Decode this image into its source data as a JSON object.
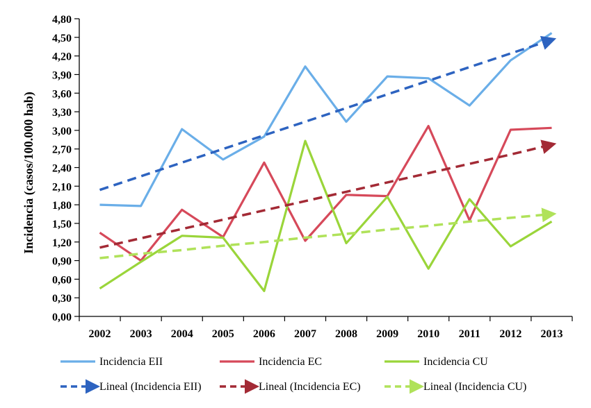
{
  "chart_data": {
    "type": "line",
    "title": "",
    "xlabel": "",
    "ylabel": "Incidencia (casos/100.000 hab)",
    "categories": [
      "2002",
      "2003",
      "2004",
      "2005",
      "2006",
      "2007",
      "2008",
      "2009",
      "2010",
      "2011",
      "2012",
      "2013"
    ],
    "ylim": [
      0,
      4.8
    ],
    "yticks": [
      "0,00",
      "0,30",
      "0,60",
      "0,90",
      "1,20",
      "1,50",
      "1,80",
      "2,10",
      "2,40",
      "2,70",
      "3,00",
      "3,30",
      "3,60",
      "3,90",
      "4,20",
      "4,50",
      "4,80"
    ],
    "grid": false,
    "legend_position": "bottom",
    "series": [
      {
        "name": "Incidencia EII",
        "color": "#6aaee8",
        "style": "solid",
        "values": [
          1.8,
          1.78,
          3.02,
          2.53,
          2.9,
          4.03,
          3.14,
          3.87,
          3.84,
          3.4,
          4.13,
          4.57
        ]
      },
      {
        "name": "Incidencia EC",
        "color": "#d6495a",
        "style": "solid",
        "values": [
          1.35,
          0.9,
          1.72,
          1.28,
          2.48,
          1.22,
          1.96,
          1.94,
          3.07,
          1.55,
          3.01,
          3.04
        ]
      },
      {
        "name": "Incidencia CU",
        "color": "#9ad53a",
        "style": "solid",
        "values": [
          0.45,
          0.88,
          1.3,
          1.27,
          0.41,
          2.83,
          1.18,
          1.93,
          0.77,
          1.89,
          1.13,
          1.53
        ]
      },
      {
        "name": "Lineal (Incidencia EII)",
        "color": "#2d63c0",
        "style": "dashed",
        "values": [
          2.04,
          2.26,
          2.48,
          2.7,
          2.92,
          3.14,
          3.36,
          3.58,
          3.8,
          4.02,
          4.24,
          4.46
        ]
      },
      {
        "name": "Lineal (Incidencia EC)",
        "color": "#a32a35",
        "style": "dashed",
        "values": [
          1.11,
          1.26,
          1.41,
          1.56,
          1.71,
          1.86,
          2.01,
          2.16,
          2.31,
          2.46,
          2.61,
          2.77
        ]
      },
      {
        "name": "Lineal (Incidencia CU)",
        "color": "#b0e25a",
        "style": "dashed",
        "values": [
          0.94,
          1.01,
          1.07,
          1.14,
          1.2,
          1.27,
          1.33,
          1.4,
          1.46,
          1.53,
          1.59,
          1.65
        ]
      }
    ]
  }
}
